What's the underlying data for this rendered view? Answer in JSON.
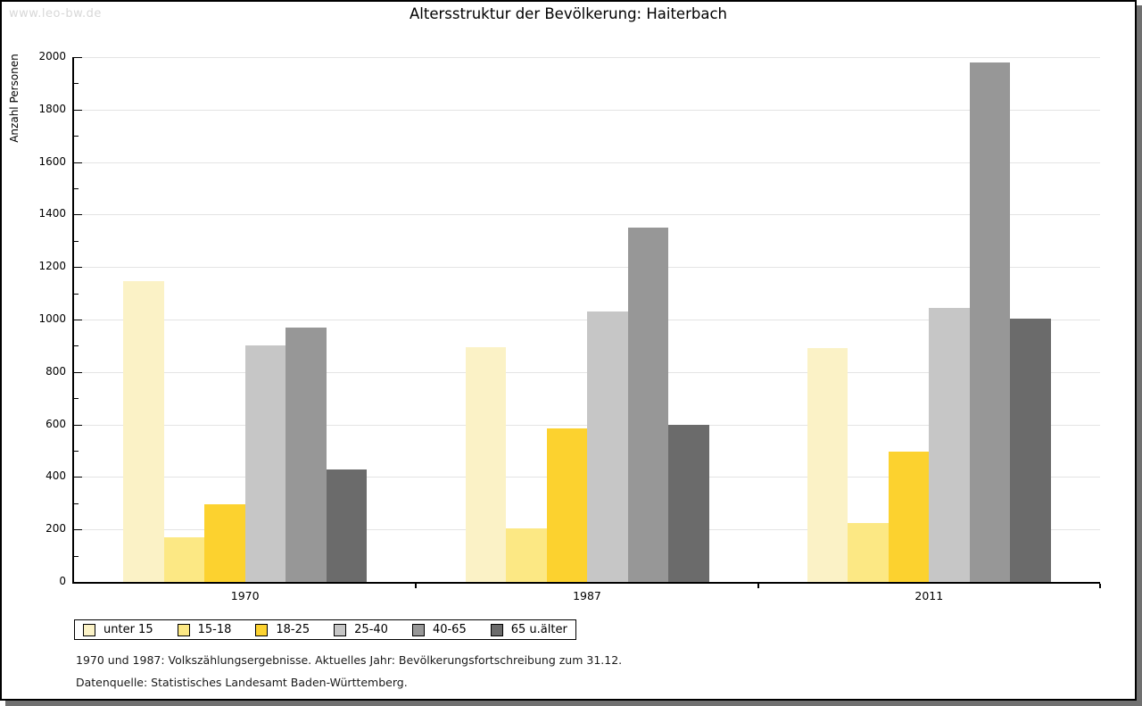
{
  "page": {
    "watermark": "www.leo-bw.de",
    "footnote_line1": "1970 und 1987: Volkszählungsergebnisse. Aktuelles Jahr: Bevölkerungsfortschreibung zum 31.12.",
    "footnote_line2": "Datenquelle: Statistisches Landesamt Baden-Württemberg."
  },
  "chart_data": {
    "type": "bar",
    "title": "Altersstruktur der Bevölkerung: Haiterbach",
    "xlabel": "",
    "ylabel": "Anzahl Personen",
    "ylim": [
      0,
      2000
    ],
    "ytick_step": 200,
    "yminor_step": 100,
    "grid": true,
    "legend_position": "bottom-left",
    "categories": [
      "1970",
      "1987",
      "2011"
    ],
    "series": [
      {
        "name": "unter 15",
        "color": "#FBF2C6",
        "values": [
          1145,
          895,
          890
        ]
      },
      {
        "name": "15-18",
        "color": "#FCE884",
        "values": [
          170,
          205,
          225
        ]
      },
      {
        "name": "18-25",
        "color": "#FCD22F",
        "values": [
          295,
          585,
          495
        ]
      },
      {
        "name": "25-40",
        "color": "#C6C6C6",
        "values": [
          900,
          1030,
          1045
        ]
      },
      {
        "name": "40-65",
        "color": "#979797",
        "values": [
          970,
          1350,
          1980
        ]
      },
      {
        "name": "65 u.älter",
        "color": "#6B6B6B",
        "values": [
          430,
          600,
          1005
        ]
      }
    ]
  }
}
